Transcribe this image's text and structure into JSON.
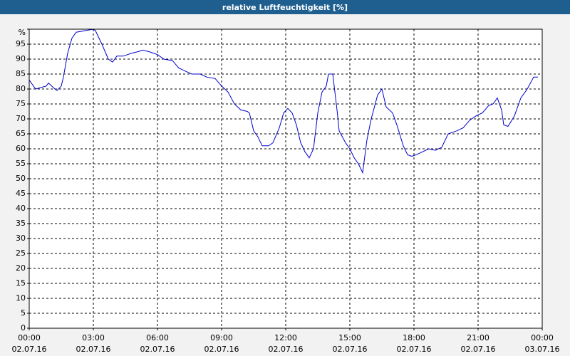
{
  "chart_data": {
    "type": "line",
    "title": "relative Luftfeuchtigkeit [%]",
    "color": "#0000cc",
    "grid": true,
    "x": [
      0.0,
      0.3,
      0.8,
      0.9,
      1.2,
      1.3,
      1.5,
      1.6,
      1.8,
      2.0,
      2.2,
      2.6,
      3.0,
      3.1,
      3.4,
      3.7,
      3.9,
      4.1,
      4.4,
      4.8,
      5.1,
      5.3,
      5.6,
      6.0,
      6.3,
      6.7,
      7.0,
      7.3,
      7.6,
      8.0,
      8.3,
      8.7,
      9.0,
      9.3,
      9.6,
      9.9,
      10.2,
      10.3,
      10.5,
      10.7,
      10.9,
      11.2,
      11.4,
      11.7,
      11.9,
      12.1,
      12.3,
      12.5,
      12.7,
      12.9,
      13.1,
      13.3,
      13.5,
      13.7,
      13.9,
      14.0,
      14.2,
      14.4,
      14.5,
      14.8,
      15.0,
      15.2,
      15.4,
      15.6,
      15.8,
      16.0,
      16.3,
      16.5,
      16.7,
      17.0,
      17.2,
      17.5,
      17.7,
      17.9,
      18.1,
      18.4,
      18.7,
      19.0,
      19.3,
      19.6,
      20.0,
      20.3,
      20.6,
      20.9,
      21.2,
      21.5,
      21.7,
      21.9,
      22.1,
      22.2,
      22.4,
      22.7,
      23.0,
      23.3,
      23.6,
      23.8
    ],
    "values": [
      83,
      80,
      81,
      82,
      80,
      79.5,
      81,
      84,
      92,
      97,
      99,
      99.5,
      100,
      99.5,
      95,
      90,
      89,
      91,
      91,
      92,
      92.5,
      93,
      92.5,
      91.5,
      90,
      89.5,
      87,
      86,
      85,
      85,
      84,
      83.5,
      81,
      79,
      75,
      73,
      72.5,
      72,
      66,
      64,
      61,
      61,
      62,
      67,
      72,
      73.5,
      72,
      68,
      62,
      59,
      57,
      60,
      72,
      79,
      81,
      85,
      85,
      73,
      66,
      62,
      60,
      57,
      55,
      52,
      63,
      70,
      78,
      80,
      74,
      72,
      68,
      61,
      58,
      57.5,
      58,
      59,
      60,
      59.5,
      60.5,
      65,
      66,
      67,
      69.5,
      71,
      72,
      74.5,
      75,
      77,
      73,
      68,
      67.5,
      71,
      77,
      80,
      84,
      84
    ],
    "xlim": [
      0,
      24
    ],
    "xticks": [
      {
        "value": 0,
        "label": "00:00"
      },
      {
        "value": 3,
        "label": "03:00"
      },
      {
        "value": 6,
        "label": "06:00"
      },
      {
        "value": 9,
        "label": "09:00"
      },
      {
        "value": 12,
        "label": "12:00"
      },
      {
        "value": 15,
        "label": "15:00"
      },
      {
        "value": 18,
        "label": "18:00"
      },
      {
        "value": 21,
        "label": "21:00"
      },
      {
        "value": 24,
        "label": "00:00"
      }
    ],
    "xtick_dates": [
      "02.07.16",
      "02.07.16",
      "02.07.16",
      "02.07.16",
      "02.07.16",
      "02.07.16",
      "02.07.16",
      "02.07.16",
      "03.07.16"
    ],
    "ylim": [
      0,
      100
    ],
    "yticks": [
      0,
      5,
      10,
      15,
      20,
      25,
      30,
      35,
      40,
      45,
      50,
      55,
      60,
      65,
      70,
      75,
      80,
      85,
      90,
      95,
      {
        "value": 100,
        "label": "%"
      }
    ]
  }
}
